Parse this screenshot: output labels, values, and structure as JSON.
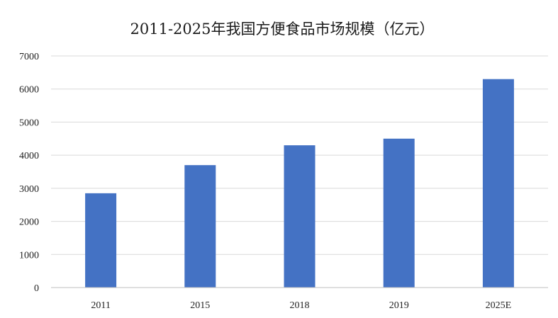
{
  "chart_data": {
    "type": "bar",
    "title": "2011-2025年我国方便食品市场规模（亿元）",
    "xlabel": "",
    "ylabel": "",
    "categories": [
      "2011",
      "2015",
      "2018",
      "2019",
      "2025E"
    ],
    "values": [
      2850,
      3700,
      4300,
      4500,
      6300
    ],
    "ylim": [
      0,
      7000
    ],
    "yticks": [
      0,
      1000,
      2000,
      3000,
      4000,
      5000,
      6000,
      7000
    ],
    "grid": true,
    "legend": "none",
    "bar_color": "#4472C4"
  }
}
